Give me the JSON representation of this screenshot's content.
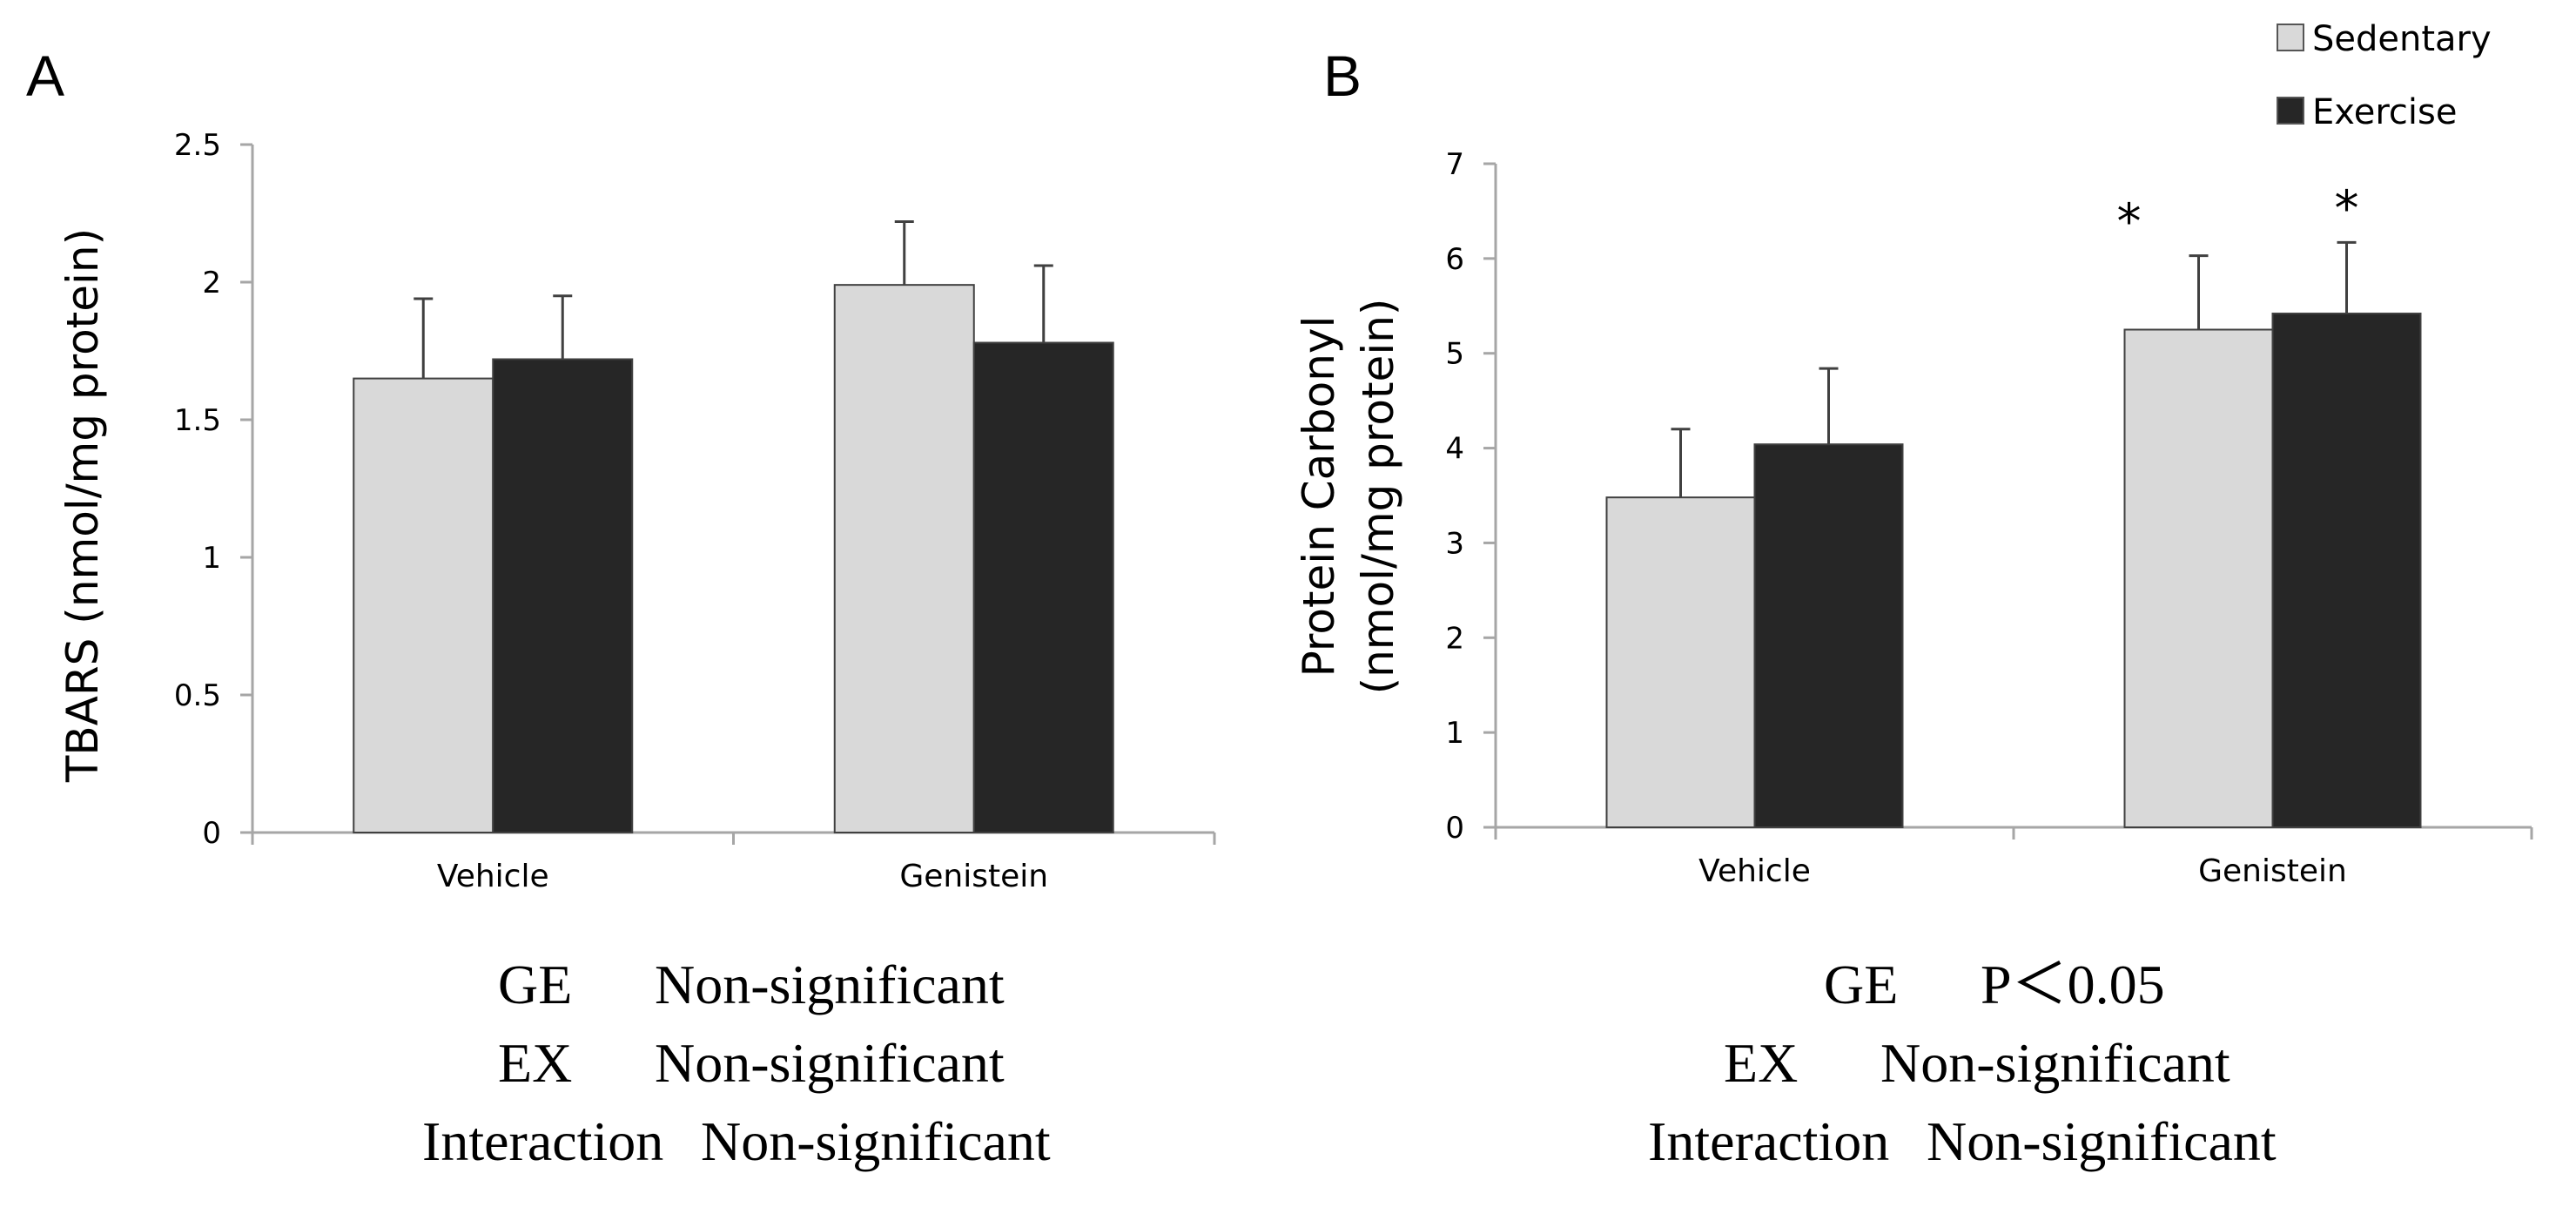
{
  "chart_data": [
    {
      "panel": "A",
      "type": "bar",
      "categories": [
        "Vehicle",
        "Genistein"
      ],
      "series": [
        {
          "name": "Sedentary",
          "values": [
            1.65,
            1.99
          ],
          "errors": [
            0.29,
            0.23
          ]
        },
        {
          "name": "Exercise",
          "values": [
            1.72,
            1.78
          ],
          "errors": [
            0.23,
            0.28
          ]
        }
      ],
      "ylabel": "TBARS (nmol/mg protein)",
      "ylim": [
        0,
        2.5
      ],
      "yticks": [
        "0",
        "0.5",
        "1",
        "1.5",
        "2",
        "2.5"
      ],
      "annotations": [],
      "stats": [
        {
          "label": "GE",
          "result": "Non-significant"
        },
        {
          "label": "EX",
          "result": "Non-significant"
        },
        {
          "label": "Interaction",
          "result": "Non-significant"
        }
      ]
    },
    {
      "panel": "B",
      "type": "bar",
      "categories": [
        "Vehicle",
        "Genistein"
      ],
      "series": [
        {
          "name": "Sedentary",
          "values": [
            3.48,
            5.25
          ],
          "errors": [
            0.72,
            0.78
          ]
        },
        {
          "name": "Exercise",
          "values": [
            4.04,
            5.42
          ],
          "errors": [
            0.8,
            0.75
          ]
        }
      ],
      "ylabel_lines": [
        "Protein Carbonyl",
        "(nmol/mg protein)"
      ],
      "ylim": [
        0,
        7
      ],
      "yticks": [
        "0",
        "1",
        "2",
        "3",
        "4",
        "5",
        "6",
        "7"
      ],
      "annotations": [
        {
          "text": "*",
          "category": "Genistein",
          "series": "Sedentary"
        },
        {
          "text": "*",
          "category": "Genistein",
          "series": "Exercise"
        }
      ],
      "stats": [
        {
          "label": "GE",
          "result": "P＜0.05"
        },
        {
          "label": "EX",
          "result": "Non-significant"
        },
        {
          "label": "Interaction",
          "result": "Non-significant"
        }
      ]
    }
  ],
  "legend": [
    {
      "name": "Sedentary",
      "color": "#d9d9d9"
    },
    {
      "name": "Exercise",
      "color": "#262626"
    }
  ],
  "colors": {
    "sedentary": "#d9d9d9",
    "exercise": "#262626",
    "axis": "#a6a6a6"
  }
}
